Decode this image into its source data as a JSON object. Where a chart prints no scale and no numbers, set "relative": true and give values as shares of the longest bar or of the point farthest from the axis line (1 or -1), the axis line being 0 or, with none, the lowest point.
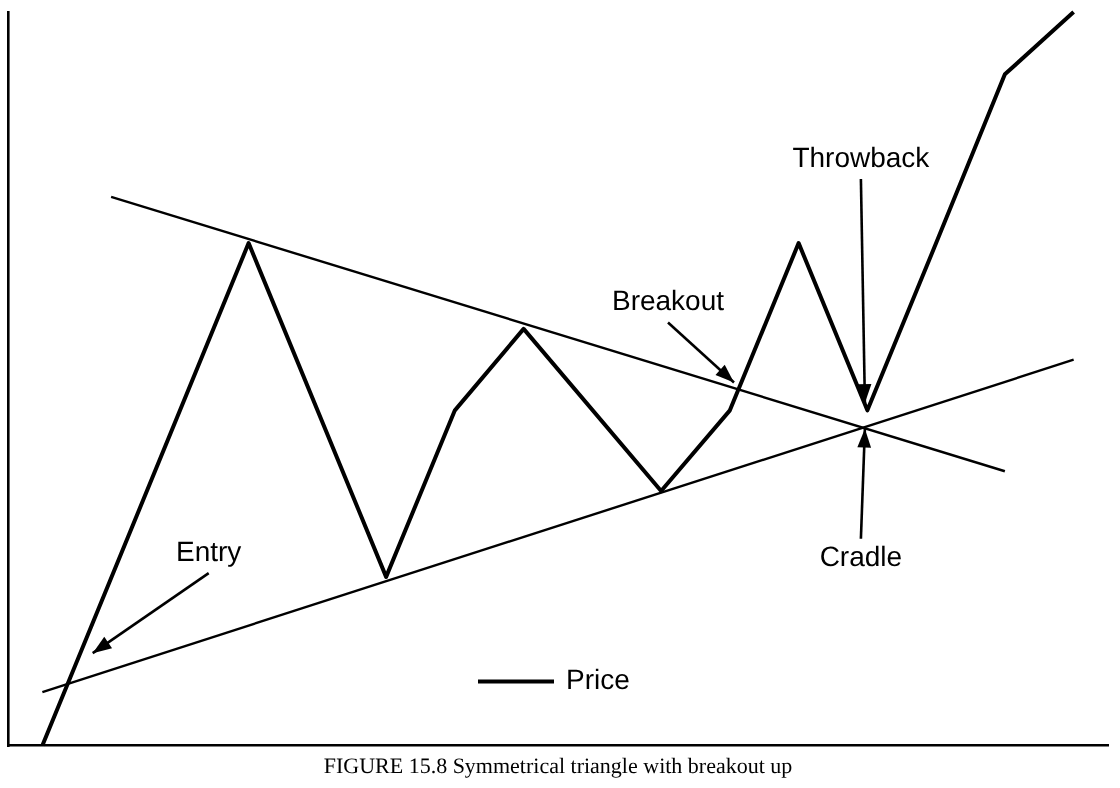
{
  "chart_data": {
    "type": "line",
    "title": "FIGURE 15.8 Symmetrical triangle with breakout up",
    "relative": true,
    "grid": false,
    "legend": "bottom",
    "marker": "none",
    "categories": [
      null,
      null,
      null,
      null,
      null,
      null,
      null,
      null,
      null,
      null,
      null,
      null,
      null,
      null,
      null,
      null
    ],
    "series": [
      {
        "name": "Price",
        "color": "#000000",
        "values": [
          0,
          null,
          null,
          0.685,
          null,
          0.23,
          0.457,
          0.568,
          null,
          0.347,
          0.457,
          0.685,
          0.457,
          0.685,
          0.915,
          1
        ]
      },
      {
        "type": "line",
        "color": "#000000",
        "values": [
          null,
          0.748,
          null,
          null,
          null,
          null,
          null,
          null,
          null,
          null,
          null,
          null,
          null,
          null,
          0.374,
          null
        ]
      },
      {
        "type": "line",
        "color": "#000000",
        "values": [
          0.073,
          null,
          null,
          null,
          null,
          null,
          null,
          null,
          null,
          null,
          null,
          null,
          null,
          null,
          null,
          0.526
        ]
      }
    ],
    "annotations": [
      "Entry",
      "Breakout",
      "Throwback",
      "Cradle"
    ]
  }
}
